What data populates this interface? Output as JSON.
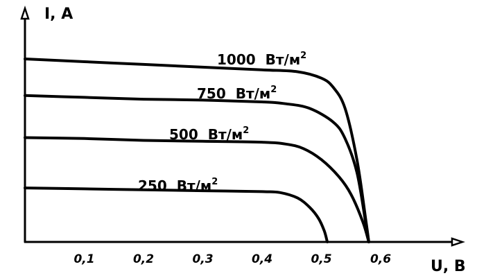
{
  "chart_data": {
    "type": "line",
    "title": "",
    "xlabel": "U, В",
    "ylabel": "I, А",
    "xlim": [
      0,
      0.7
    ],
    "ylim": [
      0,
      1.0
    ],
    "x_ticks": [
      "0,1",
      "0,2",
      "0,3",
      "0,4",
      "0,5",
      "0,6"
    ],
    "x_tick_values": [
      0.1,
      0.2,
      0.3,
      0.4,
      0.5,
      0.6
    ],
    "grid": false,
    "legend": "none",
    "series": [
      {
        "name": "1000 Вт/м²",
        "label_parts": [
          "1000",
          "Вт/м",
          "2"
        ],
        "x": [
          0.0,
          0.1,
          0.2,
          0.3,
          0.4,
          0.46,
          0.5,
          0.52,
          0.54,
          0.56,
          0.575,
          0.58
        ],
        "y": [
          1.0,
          0.985,
          0.97,
          0.955,
          0.94,
          0.93,
          0.895,
          0.845,
          0.73,
          0.45,
          0.12,
          0.0
        ]
      },
      {
        "name": "750 Вт/м²",
        "label_parts": [
          "750",
          "Вт/м",
          "2"
        ],
        "x": [
          0.0,
          0.1,
          0.2,
          0.3,
          0.4,
          0.44,
          0.48,
          0.52,
          0.54,
          0.56,
          0.575,
          0.58
        ],
        "y": [
          0.8,
          0.79,
          0.78,
          0.775,
          0.765,
          0.755,
          0.73,
          0.655,
          0.565,
          0.38,
          0.1,
          0.0
        ]
      },
      {
        "name": "500 Вт/м²",
        "label_parts": [
          "500",
          "Вт/м",
          "2"
        ],
        "x": [
          0.0,
          0.1,
          0.2,
          0.3,
          0.4,
          0.44,
          0.47,
          0.5,
          0.53,
          0.55,
          0.57,
          0.58
        ],
        "y": [
          0.57,
          0.565,
          0.555,
          0.55,
          0.545,
          0.535,
          0.51,
          0.45,
          0.355,
          0.26,
          0.11,
          0.0
        ]
      },
      {
        "name": "250 Вт/м²",
        "label_parts": [
          "250",
          "Вт/м",
          "2"
        ],
        "x": [
          0.0,
          0.1,
          0.2,
          0.3,
          0.4,
          0.43,
          0.46,
          0.48,
          0.495,
          0.505,
          0.51
        ],
        "y": [
          0.295,
          0.29,
          0.285,
          0.28,
          0.275,
          0.27,
          0.24,
          0.19,
          0.13,
          0.06,
          0.0
        ]
      }
    ]
  }
}
